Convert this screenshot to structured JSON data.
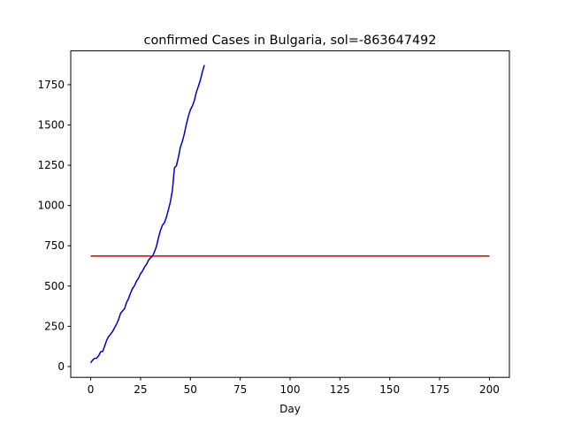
{
  "chart_data": {
    "type": "line",
    "title": "confirmed Cases in Bulgaria, sol=-863647492",
    "x_label": "Day",
    "series": [
      {
        "color": "#0000cc",
        "x": [
          0,
          1,
          2,
          3,
          4,
          5,
          6,
          7,
          8,
          9,
          10,
          11,
          12,
          13,
          14,
          15,
          16,
          17,
          18,
          19,
          20,
          21,
          22,
          23,
          24,
          25,
          26,
          27,
          28,
          29,
          30,
          31,
          32,
          33,
          34,
          35,
          36,
          37,
          38,
          39,
          40,
          41,
          42,
          43,
          44,
          45,
          46,
          47,
          48,
          49,
          50,
          51,
          52,
          53,
          54,
          55,
          56,
          57
        ],
        "values": [
          23,
          41,
          51,
          52,
          67,
          92,
          94,
          127,
          163,
          187,
          201,
          218,
          242,
          264,
          293,
          331,
          346,
          359,
          399,
          422,
          457,
          485,
          503,
          531,
          549,
          577,
          593,
          618,
          635,
          661,
          675,
          685,
          713,
          747,
          800,
          846,
          878,
          894,
          929,
          975,
          1024,
          1097,
          1234,
          1247,
          1300,
          1363,
          1399,
          1447,
          1506,
          1555,
          1594,
          1618,
          1652,
          1704,
          1740,
          1778,
          1829,
          1872
        ]
      },
      {
        "color": "#cc0000",
        "x": [
          0,
          200
        ],
        "values": [
          686,
          686
        ]
      }
    ],
    "xlim": [
      -10,
      210
    ],
    "xticks": [
      0,
      25,
      50,
      75,
      100,
      125,
      150,
      175,
      200
    ],
    "ylim": [
      -67,
      1960
    ],
    "yticks": [
      0,
      250,
      500,
      750,
      1000,
      1250,
      1500,
      1750
    ],
    "grid": false
  }
}
